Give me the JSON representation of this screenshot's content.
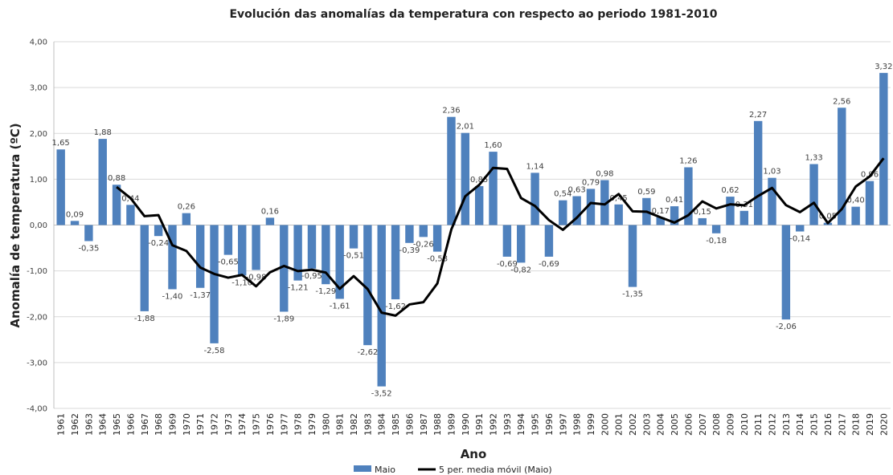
{
  "chart_data": {
    "type": "bar",
    "title": "Evolución das anomalías da temperatura con respecto ao periodo 1981-2010",
    "x_label": "Ano",
    "y_label": "Anomalía de temperatura (ºC)",
    "categories": [
      "1961",
      "1962",
      "1963",
      "1964",
      "1965",
      "1966",
      "1967",
      "1968",
      "1969",
      "1970",
      "1971",
      "1972",
      "1973",
      "1974",
      "1975",
      "1976",
      "1977",
      "1978",
      "1979",
      "1980",
      "1981",
      "1982",
      "1983",
      "1984",
      "1985",
      "1986",
      "1987",
      "1988",
      "1989",
      "1990",
      "1991",
      "1992",
      "1993",
      "1994",
      "1995",
      "1996",
      "1997",
      "1998",
      "1999",
      "2000",
      "2001",
      "2002",
      "2003",
      "2004",
      "2005",
      "2006",
      "2007",
      "2008",
      "2009",
      "2010",
      "2011",
      "2012",
      "2013",
      "2014",
      "2015",
      "2016",
      "2017",
      "2018",
      "2019",
      "2020"
    ],
    "series": [
      {
        "name": "Maio",
        "type": "bar",
        "color": "#4f81bd",
        "values": [
          1.65,
          0.09,
          -0.35,
          1.88,
          0.88,
          0.44,
          -1.88,
          -0.24,
          -1.4,
          0.26,
          -1.37,
          -2.58,
          -0.65,
          -1.1,
          -0.98,
          0.16,
          -1.89,
          -1.21,
          -0.95,
          -1.29,
          -1.61,
          -0.51,
          -2.62,
          -3.52,
          -1.62,
          -0.39,
          -0.26,
          -0.58,
          2.36,
          2.01,
          0.85,
          1.6,
          -0.69,
          -0.82,
          1.14,
          -0.69,
          0.54,
          0.63,
          0.79,
          0.98,
          0.45,
          -1.35,
          0.59,
          0.17,
          0.41,
          1.26,
          0.15,
          -0.18,
          0.62,
          0.31,
          2.27,
          1.03,
          -2.06,
          -0.14,
          1.33,
          0.05,
          2.56,
          0.4,
          0.96,
          3.32
        ],
        "value_labels": [
          "1,65",
          "0,09",
          "-0,35",
          "1,88",
          "0,88",
          "0,44",
          "-1,88",
          "-0,24",
          "-1,40",
          "0,26",
          "-1,37",
          "-2,58",
          "-0,65",
          "-1,10",
          "-0,98",
          "0,16",
          "-1,89",
          "-1,21",
          "-0,95",
          "-1,29",
          "-1,61",
          "-0,51",
          "-2,62",
          "-3,52",
          "-1,62",
          "-0,39",
          "-0,26",
          "-0,58",
          "2,36",
          "2,01",
          "0,85",
          "1,60",
          "-0,69",
          "-0,82",
          "1,14",
          "-0,69",
          "0,54",
          "0,63",
          "0,79",
          "0,98",
          "0,45",
          "-1,35",
          "0,59",
          "0,17",
          "0,41",
          "1,26",
          "0,15",
          "-0,18",
          "0,62",
          "0,31",
          "2,27",
          "1,03",
          "-2,06",
          "-0,14",
          "1,33",
          "0,05",
          "2,56",
          "0,40",
          "0,96",
          "3,32"
        ]
      },
      {
        "name": "5 per. media móvil (Maio)",
        "type": "line",
        "color": "#000000",
        "values": [
          null,
          null,
          null,
          null,
          0.83,
          0.588,
          0.194,
          0.216,
          -0.44,
          -0.564,
          -0.926,
          -1.066,
          -1.148,
          -1.088,
          -1.336,
          -1.03,
          -0.892,
          -1.004,
          -0.974,
          -1.036,
          -1.39,
          -1.114,
          -1.396,
          -1.91,
          -1.976,
          -1.732,
          -1.682,
          -1.274,
          -0.098,
          0.628,
          0.876,
          1.248,
          1.226,
          0.59,
          0.416,
          0.108,
          -0.104,
          0.16,
          0.482,
          0.45,
          0.678,
          0.3,
          0.292,
          0.168,
          0.054,
          0.216,
          0.516,
          0.362,
          0.452,
          0.432,
          0.634,
          0.81,
          0.434,
          0.282,
          0.486,
          0.042,
          0.348,
          0.84,
          1.06,
          1.458
        ]
      }
    ],
    "ylim": [
      -4,
      4
    ],
    "yticks": [
      {
        "value": -4,
        "label": "-4,00"
      },
      {
        "value": -3,
        "label": "-3,00"
      },
      {
        "value": -2,
        "label": "-2,00"
      },
      {
        "value": -1,
        "label": "-1,00"
      },
      {
        "value": 0,
        "label": "0,00"
      },
      {
        "value": 1,
        "label": "1,00"
      },
      {
        "value": 2,
        "label": "2,00"
      },
      {
        "value": 3,
        "label": "3,00"
      },
      {
        "value": 4,
        "label": "4,00"
      }
    ],
    "grid": true,
    "legend": "bottom"
  }
}
